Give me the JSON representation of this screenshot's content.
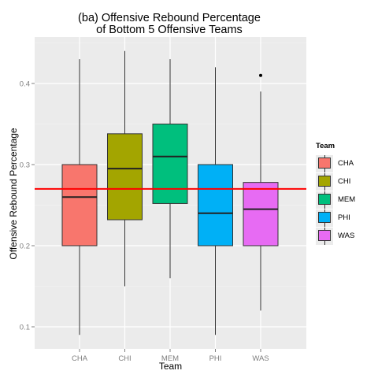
{
  "chart_data": {
    "type": "boxplot",
    "title": [
      "(ba) Offensive Rebound Percentage",
      "of Bottom 5 Offensive Teams"
    ],
    "xlabel": "Team",
    "ylabel": "Offensive Rebound Percentage",
    "categories": [
      "CHA",
      "CHI",
      "MEM",
      "PHI",
      "WAS"
    ],
    "y_ticks": [
      0.1,
      0.2,
      0.3,
      0.4
    ],
    "y_tick_labels": [
      "0.1",
      "0.2",
      "0.3",
      "0.4"
    ],
    "ylim": [
      0.07,
      0.455
    ],
    "boxes": [
      {
        "team": "CHA",
        "min": 0.09,
        "q1": 0.2,
        "median": 0.26,
        "q3": 0.3,
        "max": 0.43,
        "color": "#F8766D",
        "outliers": []
      },
      {
        "team": "CHI",
        "min": 0.15,
        "q1": 0.232,
        "median": 0.295,
        "q3": 0.338,
        "max": 0.44,
        "color": "#A3A500",
        "outliers": []
      },
      {
        "team": "MEM",
        "min": 0.16,
        "q1": 0.252,
        "median": 0.31,
        "q3": 0.35,
        "max": 0.43,
        "color": "#00BF7D",
        "outliers": []
      },
      {
        "team": "PHI",
        "min": 0.09,
        "q1": 0.2,
        "median": 0.24,
        "q3": 0.3,
        "max": 0.42,
        "color": "#00B0F6",
        "outliers": []
      },
      {
        "team": "WAS",
        "min": 0.12,
        "q1": 0.2,
        "median": 0.245,
        "q3": 0.278,
        "max": 0.39,
        "color": "#E76BF3",
        "outliers": [
          0.41
        ]
      }
    ],
    "reference_line": {
      "y": 0.27,
      "color": "#FF0000"
    },
    "legend": {
      "title": "Team",
      "position": "right"
    },
    "grid": true
  }
}
